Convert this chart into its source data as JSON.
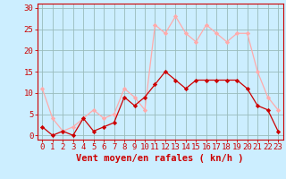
{
  "hours": [
    0,
    1,
    2,
    3,
    4,
    5,
    6,
    7,
    8,
    9,
    10,
    11,
    12,
    13,
    14,
    15,
    16,
    17,
    18,
    19,
    20,
    21,
    22,
    23
  ],
  "wind_mean": [
    2,
    0,
    1,
    0,
    4,
    1,
    2,
    3,
    9,
    7,
    9,
    12,
    15,
    13,
    11,
    13,
    13,
    13,
    13,
    13,
    11,
    7,
    6,
    1
  ],
  "wind_gust": [
    11,
    4,
    1,
    2,
    4,
    6,
    4,
    5,
    11,
    9,
    6,
    26,
    24,
    28,
    24,
    22,
    26,
    24,
    22,
    24,
    24,
    15,
    9,
    6
  ],
  "mean_color": "#cc0000",
  "gust_color": "#ffaaaa",
  "bg_color": "#cceeff",
  "grid_color": "#99bbbb",
  "xlabel": "Vent moyen/en rafales ( kn/h )",
  "xlabel_color": "#cc0000",
  "tick_color": "#cc0000",
  "spine_color": "#cc0000",
  "ylim": [
    -1,
    31
  ],
  "yticks": [
    0,
    5,
    10,
    15,
    20,
    25,
    30
  ],
  "tick_fontsize": 6.5,
  "xlabel_fontsize": 7.5
}
